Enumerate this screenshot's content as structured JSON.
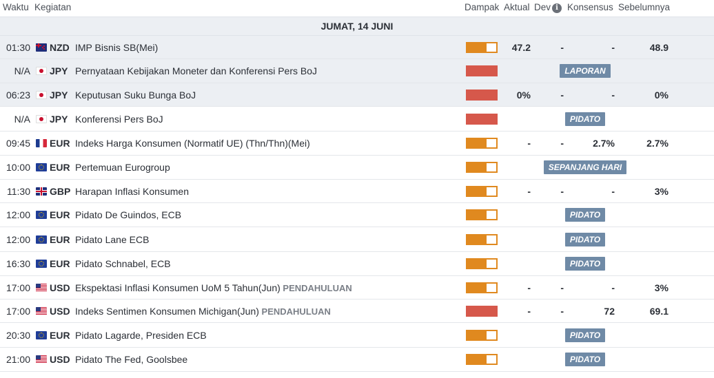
{
  "header": {
    "time": "Waktu",
    "event": "Kegiatan",
    "impact": "Dampak",
    "actual": "Aktual",
    "dev": "Dev",
    "consensus": "Konsensus",
    "previous": "Sebelumnya",
    "info_icon": "i"
  },
  "date_label": "JUMAT, 14 JUNI",
  "rows": [
    {
      "time": "01:30",
      "flag": "nz-flag-icon",
      "currency": "NZD",
      "event": "IMP Bisnis SB(Mei)",
      "prelim": "",
      "impact": "medium",
      "actual": "47.2",
      "dev": "-",
      "consensus": "-",
      "previous": "48.9",
      "badge": "",
      "shaded": true
    },
    {
      "time": "N/A",
      "flag": "jp-flag-icon",
      "currency": "JPY",
      "event": "Pernyataan Kebijakan Moneter dan Konferensi Pers BoJ",
      "prelim": "",
      "impact": "high",
      "actual": "",
      "dev": "",
      "consensus": "",
      "previous": "",
      "badge": "LAPORAN",
      "shaded": true
    },
    {
      "time": "06:23",
      "flag": "jp-flag-icon",
      "currency": "JPY",
      "event": "Keputusan Suku Bunga BoJ",
      "prelim": "",
      "impact": "high",
      "actual": "0%",
      "dev": "-",
      "consensus": "-",
      "previous": "0%",
      "badge": "",
      "shaded": true
    },
    {
      "time": "N/A",
      "flag": "jp-flag-icon",
      "currency": "JPY",
      "event": "Konferensi Pers BoJ",
      "prelim": "",
      "impact": "high",
      "actual": "",
      "dev": "",
      "consensus": "",
      "previous": "",
      "badge": "PIDATO",
      "shaded": false
    },
    {
      "time": "09:45",
      "flag": "fr-flag-icon",
      "currency": "EUR",
      "event": "Indeks Harga Konsumen (Normatif UE) (Thn/Thn)(Mei)",
      "prelim": "",
      "impact": "medium",
      "actual": "-",
      "dev": "-",
      "consensus": "2.7%",
      "previous": "2.7%",
      "badge": "",
      "shaded": false
    },
    {
      "time": "10:00",
      "flag": "eu-flag-icon",
      "currency": "EUR",
      "event": "Pertemuan Eurogroup",
      "prelim": "",
      "impact": "medium",
      "actual": "",
      "dev": "",
      "consensus": "",
      "previous": "",
      "badge": "SEPANJANG HARI",
      "shaded": false
    },
    {
      "time": "11:30",
      "flag": "gb-flag-icon",
      "currency": "GBP",
      "event": "Harapan Inflasi Konsumen",
      "prelim": "",
      "impact": "medium",
      "actual": "-",
      "dev": "-",
      "consensus": "-",
      "previous": "3%",
      "badge": "",
      "shaded": false
    },
    {
      "time": "12:00",
      "flag": "eu-flag-icon",
      "currency": "EUR",
      "event": "Pidato De Guindos, ECB",
      "prelim": "",
      "impact": "medium",
      "actual": "",
      "dev": "",
      "consensus": "",
      "previous": "",
      "badge": "PIDATO",
      "shaded": false
    },
    {
      "time": "12:00",
      "flag": "eu-flag-icon",
      "currency": "EUR",
      "event": "Pidato Lane ECB",
      "prelim": "",
      "impact": "medium",
      "actual": "",
      "dev": "",
      "consensus": "",
      "previous": "",
      "badge": "PIDATO",
      "shaded": false
    },
    {
      "time": "16:30",
      "flag": "eu-flag-icon",
      "currency": "EUR",
      "event": "Pidato Schnabel, ECB",
      "prelim": "",
      "impact": "medium",
      "actual": "",
      "dev": "",
      "consensus": "",
      "previous": "",
      "badge": "PIDATO",
      "shaded": false
    },
    {
      "time": "17:00",
      "flag": "us-flag-icon",
      "currency": "USD",
      "event": "Ekspektasi Inflasi Konsumen UoM 5 Tahun(Jun)",
      "prelim": "PENDAHULUAN",
      "impact": "medium",
      "actual": "-",
      "dev": "-",
      "consensus": "-",
      "previous": "3%",
      "badge": "",
      "shaded": false
    },
    {
      "time": "17:00",
      "flag": "us-flag-icon",
      "currency": "USD",
      "event": "Indeks Sentimen Konsumen Michigan(Jun)",
      "prelim": "PENDAHULUAN",
      "impact": "high",
      "actual": "-",
      "dev": "-",
      "consensus": "72",
      "previous": "69.1",
      "badge": "",
      "shaded": false
    },
    {
      "time": "20:30",
      "flag": "eu-flag-icon",
      "currency": "EUR",
      "event": "Pidato Lagarde, Presiden ECB",
      "prelim": "",
      "impact": "medium",
      "actual": "",
      "dev": "",
      "consensus": "",
      "previous": "",
      "badge": "PIDATO",
      "shaded": false
    },
    {
      "time": "21:00",
      "flag": "us-flag-icon",
      "currency": "USD",
      "event": "Pidato The Fed, Goolsbee",
      "prelim": "",
      "impact": "medium",
      "actual": "",
      "dev": "",
      "consensus": "",
      "previous": "",
      "badge": "PIDATO",
      "shaded": false
    }
  ]
}
